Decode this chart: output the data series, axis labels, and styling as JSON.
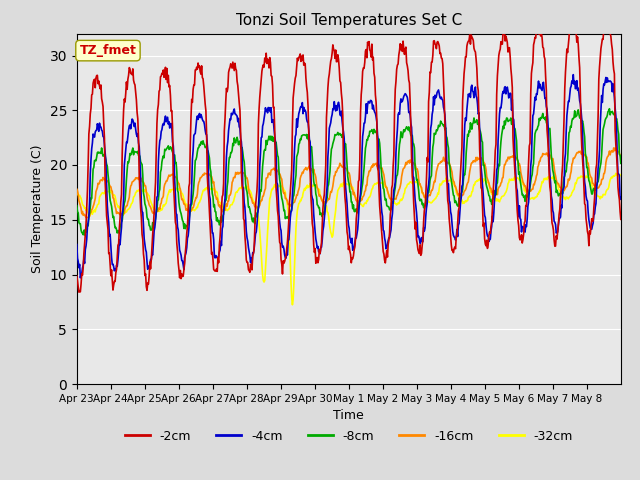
{
  "title": "Tonzi Soil Temperatures Set C",
  "xlabel": "Time",
  "ylabel": "Soil Temperature (C)",
  "ylim": [
    0,
    32
  ],
  "yticks": [
    0,
    5,
    10,
    15,
    20,
    25,
    30
  ],
  "bg_color": "#e8e8e8",
  "series": {
    "-2cm": {
      "color": "#cc0000",
      "lw": 1.2
    },
    "-4cm": {
      "color": "#0000cc",
      "lw": 1.2
    },
    "-8cm": {
      "color": "#00aa00",
      "lw": 1.2
    },
    "-16cm": {
      "color": "#ff8800",
      "lw": 1.2
    },
    "-32cm": {
      "color": "#ffff00",
      "lw": 1.2
    }
  },
  "annotation": "TZ_fmet",
  "annotation_color": "#cc0000",
  "annotation_bg": "#ffffcc",
  "legend_labels": [
    "-2cm",
    "-4cm",
    "-8cm",
    "-16cm",
    "-32cm"
  ],
  "legend_colors": [
    "#cc0000",
    "#0000cc",
    "#00aa00",
    "#ff8800",
    "#ffff00"
  ],
  "x_tick_labels": [
    "Apr 23",
    "Apr 24",
    "Apr 25",
    "Apr 26",
    "Apr 27",
    "Apr 28",
    "Apr 29",
    "Apr 30",
    "May 1",
    "May 2",
    "May 3",
    "May 4",
    "May 5",
    "May 6",
    "May 7",
    "May 8"
  ],
  "n_days": 16,
  "pts_per_day": 48
}
